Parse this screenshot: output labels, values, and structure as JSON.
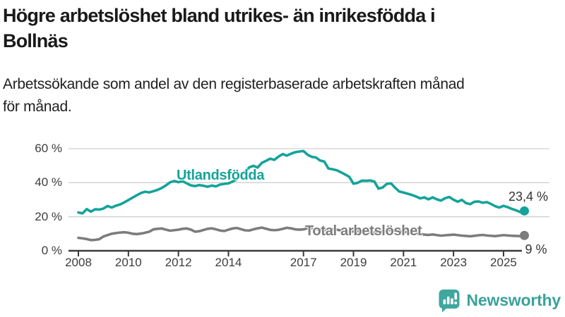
{
  "header": {
    "title_line1": "Högre arbetslöshet bland utrikes- än inrikesfödda i",
    "title_line2": "Bollnäs",
    "subtitle_line1": "Arbetssökande som andel av den registerbaserade arbetskraften månad",
    "subtitle_line2": "för månad."
  },
  "chart_data": {
    "type": "line",
    "title": "Högre arbetslöshet bland utrikes- än inrikesfödda i Bollnäs",
    "xlabel": "",
    "ylabel": "Arbetssökande som andel av den registerbaserade arbetskraften",
    "x_start": 2008.0,
    "x_step": 0.1666667,
    "x_range": [
      2008.0,
      2025.83
    ],
    "ylim": [
      0,
      65
    ],
    "grid": "horizontal",
    "y_ticks": [
      {
        "value": 60,
        "label": "60 %"
      },
      {
        "value": 40,
        "label": "40 %"
      },
      {
        "value": 20,
        "label": "20 %"
      },
      {
        "value": 0,
        "label": "0 %"
      }
    ],
    "x_ticks": [
      {
        "value": 2008,
        "label": "2008"
      },
      {
        "value": 2010,
        "label": "2010"
      },
      {
        "value": 2012,
        "label": "2012"
      },
      {
        "value": 2014,
        "label": "2014"
      },
      {
        "value": 2017,
        "label": "2017"
      },
      {
        "value": 2019,
        "label": "2019"
      },
      {
        "value": 2021,
        "label": "2021"
      },
      {
        "value": 2023,
        "label": "2023"
      },
      {
        "value": 2025,
        "label": "2025"
      }
    ],
    "series": [
      {
        "key": "utlandsfodda",
        "name": "Utlandsfödda",
        "color": "#14a39a",
        "end_label": "23,4 %",
        "end_value": 23.4,
        "values": [
          22.5,
          22.0,
          24.5,
          23.0,
          24.4,
          24.2,
          24.8,
          26.3,
          25.4,
          26.5,
          27.2,
          28.4,
          29.8,
          31.2,
          32.6,
          33.9,
          34.7,
          34.3,
          35.0,
          35.8,
          36.9,
          38.4,
          40.2,
          41.0,
          40.3,
          40.9,
          39.6,
          38.4,
          38.0,
          38.6,
          38.2,
          37.6,
          38.3,
          37.8,
          38.9,
          39.3,
          39.6,
          40.7,
          41.9,
          44.0,
          46.5,
          49.0,
          49.9,
          48.9,
          51.6,
          52.8,
          54.1,
          53.4,
          55.3,
          56.8,
          55.9,
          57.0,
          57.9,
          58.3,
          58.6,
          56.4,
          55.2,
          54.8,
          53.0,
          52.4,
          48.3,
          47.9,
          47.3,
          46.1,
          44.8,
          43.4,
          39.4,
          39.9,
          41.2,
          41.1,
          41.3,
          40.7,
          36.5,
          37.2,
          39.3,
          39.6,
          37.0,
          34.8,
          34.2,
          33.5,
          32.8,
          31.9,
          30.8,
          31.4,
          30.2,
          31.4,
          30.2,
          29.5,
          30.9,
          31.6,
          30.0,
          28.8,
          29.9,
          28.0,
          27.4,
          28.8,
          29.0,
          28.2,
          28.6,
          27.5,
          26.2,
          25.4,
          26.4,
          25.6,
          24.6,
          23.8,
          22.7,
          23.4
        ]
      },
      {
        "key": "total",
        "name": "Total arbetslöshet",
        "color": "#7c7c7c",
        "end_label": "9 %",
        "end_value": 9.0,
        "values": [
          7.6,
          7.3,
          6.9,
          6.3,
          6.4,
          6.8,
          8.4,
          9.2,
          10.0,
          10.4,
          10.7,
          10.9,
          10.6,
          10.0,
          9.8,
          10.1,
          10.6,
          11.2,
          12.6,
          12.9,
          13.1,
          12.4,
          11.8,
          12.1,
          12.4,
          12.9,
          13.1,
          12.4,
          11.2,
          11.5,
          12.2,
          12.9,
          13.2,
          12.6,
          11.9,
          11.6,
          12.4,
          13.1,
          13.4,
          12.7,
          12.0,
          11.9,
          12.6,
          13.2,
          13.6,
          13.0,
          12.3,
          12.1,
          12.3,
          12.9,
          13.5,
          13.2,
          12.6,
          12.4,
          12.6,
          13.2,
          13.4,
          12.8,
          12.2,
          12.0,
          12.2,
          12.6,
          12.4,
          11.9,
          11.3,
          11.1,
          11.4,
          11.6,
          11.3,
          11.0,
          10.8,
          10.6,
          10.7,
          11.3,
          12.0,
          12.2,
          11.8,
          11.5,
          11.2,
          10.9,
          10.5,
          10.1,
          9.8,
          9.5,
          9.3,
          9.6,
          9.2,
          8.9,
          9.1,
          9.3,
          9.5,
          9.2,
          8.9,
          8.7,
          8.5,
          8.8,
          9.1,
          9.3,
          9.0,
          8.8,
          8.6,
          8.9,
          9.2,
          9.0,
          8.8,
          8.7,
          8.6,
          9.0
        ]
      }
    ],
    "colors": {
      "grid": "#d0d0d0",
      "axis": "#3a3a3a",
      "tick_text": "#3d3d3d",
      "value_label_text": "#333333"
    }
  },
  "branding": {
    "logo_text": "Newsworthy",
    "logo_color": "#3aa29b",
    "logo_icon": "bar-chart-speech-bubble-icon"
  }
}
